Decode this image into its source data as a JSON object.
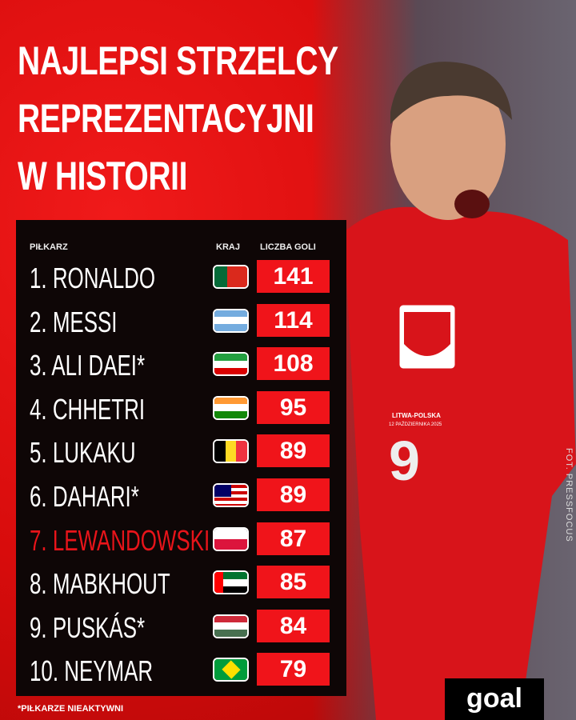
{
  "title": [
    "NAJLEPSI STRZELCY",
    "REPREZENTACYJNI",
    "W HISTORII"
  ],
  "headers": {
    "player": "PIŁKARZ",
    "country": "KRAJ",
    "goals": "LICZBA GOLI"
  },
  "rows": [
    {
      "name": "1. RONALDO",
      "country": "portugal",
      "goals": "141"
    },
    {
      "name": "2. MESSI",
      "country": "argentina",
      "goals": "114"
    },
    {
      "name": "3. ALI DAEI*",
      "country": "iran",
      "goals": "108"
    },
    {
      "name": "4. CHHETRI",
      "country": "india",
      "goals": "95"
    },
    {
      "name": "5. LUKAKU",
      "country": "belgium",
      "goals": "89"
    },
    {
      "name": "6. DAHARI*",
      "country": "malaysia",
      "goals": "89"
    },
    {
      "name": "7. LEWANDOWSKI",
      "country": "poland",
      "goals": "87",
      "highlight": true
    },
    {
      "name": "8. MABKHOUT",
      "country": "uae",
      "goals": "85"
    },
    {
      "name": "9. PUSKÁS*",
      "country": "hungary",
      "goals": "84"
    },
    {
      "name": "10. NEYMAR",
      "country": "brazil",
      "goals": "79"
    }
  ],
  "footnote": "*PIŁKARZE NIEAKTYWNI",
  "credit": "FOT. PRESSFOCUS",
  "jersey": {
    "match": "LITWA-POLSKA",
    "date": "12 PAŹDZIERNIKA 2025",
    "number": "9"
  },
  "logo": "goal",
  "colors": {
    "accent": "#f0141a",
    "panel": "#0e0606"
  }
}
